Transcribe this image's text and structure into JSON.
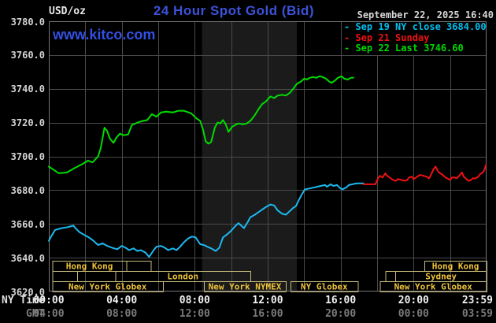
{
  "header": {
    "unit_label": "USD/oz",
    "title": "24 Hour Spot Gold (Bid)",
    "watermark": "www.kitco.com",
    "timestamp": "September 22, 2025 16:40"
  },
  "axis_rows": {
    "ny": "NY Time",
    "gmt": "GMT"
  },
  "colors": {
    "background": "#000000",
    "grid": "#4a4a4a",
    "border": "#777777",
    "band": "#1b1b1b",
    "session_box": "#c6ba7c",
    "session_label": "#efc43a",
    "title_blue": "#3c52d9",
    "green": "#00dc00",
    "cyan": "#1cb8f0",
    "red": "#ee1111"
  },
  "chart_data": {
    "type": "line",
    "title": "24 Hour Spot Gold (Bid)",
    "ylabel": "USD/oz",
    "timestamp": "September 22, 2025 16:40",
    "ylim": [
      3620,
      3780
    ],
    "y_ticks": [
      3780,
      3760,
      3740,
      3720,
      3700,
      3680,
      3660,
      3640,
      3620
    ],
    "grid_hours": [
      2,
      4,
      6,
      8,
      10,
      12,
      14,
      16,
      18,
      20,
      22
    ],
    "x_ticks": [
      {
        "h": 0,
        "ny": "00:00",
        "gmt": "04:00"
      },
      {
        "h": 4,
        "ny": "04:00",
        "gmt": "08:00"
      },
      {
        "h": 8,
        "ny": "08:00",
        "gmt": "12:00"
      },
      {
        "h": 12,
        "ny": "12:00",
        "gmt": "16:00"
      },
      {
        "h": 16,
        "ny": "16:00",
        "gmt": "20:00"
      },
      {
        "h": 20,
        "ny": "20:00",
        "gmt": "00:00"
      },
      {
        "h": 23.98,
        "ny": "23:59",
        "gmt": "03:59"
      }
    ],
    "nymex_band_hours": [
      8.4,
      13.6
    ],
    "legend": [
      {
        "label": "Sep 19 NY close 3684.00",
        "color": "#00bff0"
      },
      {
        "label": "Sep 21 Sunday",
        "color": "#ee1111"
      },
      {
        "label": "Sep 22 Last 3746.60",
        "color": "#00d800"
      }
    ],
    "sessions": [
      {
        "row": 0,
        "start": 0.2,
        "end": 4.25,
        "label": "Hong Kong"
      },
      {
        "row": 0,
        "start": 4.25,
        "end": 5.6,
        "label": ""
      },
      {
        "row": 0,
        "start": 20.6,
        "end": 24,
        "label": "Hong Kong"
      },
      {
        "row": 1,
        "start": 0.2,
        "end": 1.55,
        "label": ""
      },
      {
        "row": 1,
        "start": 1.55,
        "end": 3.65,
        "label": ""
      },
      {
        "row": 1,
        "start": 3.65,
        "end": 11.05,
        "label": "London"
      },
      {
        "row": 1,
        "start": 18.45,
        "end": 19,
        "label": ""
      },
      {
        "row": 1,
        "start": 19,
        "end": 24,
        "label": "Sydney"
      },
      {
        "row": 2,
        "start": 0.2,
        "end": 6.25,
        "label": "New York Globex"
      },
      {
        "row": 2,
        "start": 8.5,
        "end": 13,
        "label": "New York NYMEX"
      },
      {
        "row": 2,
        "start": 13.25,
        "end": 16.95,
        "label": "NY Globex"
      },
      {
        "row": 2,
        "start": 18.15,
        "end": 24,
        "label": "New York Globex"
      }
    ],
    "series": [
      {
        "name": "Sep 19",
        "color": "#1cb8f0",
        "points": [
          [
            0,
            3650
          ],
          [
            0.15,
            3653
          ],
          [
            0.35,
            3656.5
          ],
          [
            0.7,
            3657.5
          ],
          [
            1,
            3658
          ],
          [
            1.35,
            3659
          ],
          [
            1.5,
            3657
          ],
          [
            1.7,
            3655
          ],
          [
            1.95,
            3653.5
          ],
          [
            2.2,
            3652
          ],
          [
            2.45,
            3650
          ],
          [
            2.7,
            3647.5
          ],
          [
            2.95,
            3648.5
          ],
          [
            3.2,
            3647
          ],
          [
            3.45,
            3646
          ],
          [
            3.75,
            3645
          ],
          [
            4,
            3647
          ],
          [
            4.2,
            3646
          ],
          [
            4.4,
            3644.5
          ],
          [
            4.65,
            3645.5
          ],
          [
            4.85,
            3644
          ],
          [
            5.05,
            3644.5
          ],
          [
            5.3,
            3643
          ],
          [
            5.5,
            3640.5
          ],
          [
            5.6,
            3642
          ],
          [
            5.75,
            3644.5
          ],
          [
            5.9,
            3646.5
          ],
          [
            6.15,
            3647
          ],
          [
            6.35,
            3646
          ],
          [
            6.55,
            3644.5
          ],
          [
            6.8,
            3645.5
          ],
          [
            7,
            3644.5
          ],
          [
            7.2,
            3646.5
          ],
          [
            7.4,
            3649
          ],
          [
            7.65,
            3651.5
          ],
          [
            7.85,
            3652.5
          ],
          [
            8.05,
            3652
          ],
          [
            8.3,
            3648
          ],
          [
            8.5,
            3647.5
          ],
          [
            8.7,
            3646.5
          ],
          [
            8.9,
            3645.5
          ],
          [
            9.15,
            3644
          ],
          [
            9.35,
            3646
          ],
          [
            9.55,
            3652
          ],
          [
            9.8,
            3654
          ],
          [
            10,
            3656
          ],
          [
            10.2,
            3658.5
          ],
          [
            10.4,
            3660.5
          ],
          [
            10.55,
            3659
          ],
          [
            10.7,
            3657.5
          ],
          [
            10.9,
            3661
          ],
          [
            11.05,
            3664
          ],
          [
            11.3,
            3665.5
          ],
          [
            11.5,
            3667
          ],
          [
            11.7,
            3668.5
          ],
          [
            11.9,
            3670
          ],
          [
            12.15,
            3671.5
          ],
          [
            12.35,
            3671
          ],
          [
            12.55,
            3668
          ],
          [
            12.8,
            3666
          ],
          [
            13,
            3665.5
          ],
          [
            13.2,
            3667.5
          ],
          [
            13.4,
            3669.5
          ],
          [
            13.55,
            3670.5
          ],
          [
            13.7,
            3674
          ],
          [
            13.9,
            3678
          ],
          [
            14.05,
            3680.5
          ],
          [
            14.3,
            3681
          ],
          [
            14.5,
            3681.5
          ],
          [
            14.7,
            3682
          ],
          [
            14.9,
            3682.5
          ],
          [
            15.15,
            3683
          ],
          [
            15.25,
            3682
          ],
          [
            15.45,
            3683.5
          ],
          [
            15.6,
            3682.5
          ],
          [
            15.8,
            3683
          ],
          [
            16,
            3681
          ],
          [
            16.1,
            3680.5
          ],
          [
            16.3,
            3681.5
          ],
          [
            16.45,
            3683
          ],
          [
            16.65,
            3683.5
          ],
          [
            16.85,
            3684
          ],
          [
            17.05,
            3684
          ],
          [
            17.25,
            3684
          ]
        ]
      },
      {
        "name": "Sep 21",
        "color": "#ee1111",
        "points": [
          [
            17.25,
            3683.5
          ],
          [
            17.5,
            3683.5
          ],
          [
            17.7,
            3683.5
          ],
          [
            17.9,
            3683.5
          ],
          [
            18.05,
            3687
          ],
          [
            18.15,
            3688.5
          ],
          [
            18.3,
            3687.5
          ],
          [
            18.45,
            3690
          ],
          [
            18.55,
            3688.5
          ],
          [
            18.7,
            3687.5
          ],
          [
            18.8,
            3686.5
          ],
          [
            19,
            3685.5
          ],
          [
            19.15,
            3686.5
          ],
          [
            19.35,
            3686
          ],
          [
            19.5,
            3685.5
          ],
          [
            19.65,
            3686
          ],
          [
            19.75,
            3687.5
          ],
          [
            19.9,
            3688
          ],
          [
            20,
            3686.5
          ],
          [
            20.2,
            3688
          ],
          [
            20.35,
            3689
          ],
          [
            20.55,
            3688.5
          ],
          [
            20.7,
            3688
          ],
          [
            20.85,
            3687
          ],
          [
            20.95,
            3689
          ],
          [
            21.1,
            3692.5
          ],
          [
            21.2,
            3694
          ],
          [
            21.35,
            3691
          ],
          [
            21.45,
            3690
          ],
          [
            21.6,
            3689
          ],
          [
            21.75,
            3687.5
          ],
          [
            21.85,
            3687
          ],
          [
            22,
            3686
          ],
          [
            22.1,
            3687.5
          ],
          [
            22.25,
            3687.5
          ],
          [
            22.35,
            3687
          ],
          [
            22.5,
            3688.5
          ],
          [
            22.65,
            3690.5
          ],
          [
            22.75,
            3688
          ],
          [
            22.9,
            3686.5
          ],
          [
            23,
            3685.5
          ],
          [
            23.15,
            3686
          ],
          [
            23.25,
            3687
          ],
          [
            23.4,
            3687
          ],
          [
            23.55,
            3688
          ],
          [
            23.65,
            3689.5
          ],
          [
            23.8,
            3690.5
          ],
          [
            23.88,
            3692
          ],
          [
            23.97,
            3695
          ]
        ]
      },
      {
        "name": "Sep 22",
        "color": "#00dc00",
        "points": [
          [
            0,
            3694
          ],
          [
            0.2,
            3692.5
          ],
          [
            0.55,
            3690
          ],
          [
            1,
            3690.5
          ],
          [
            1.4,
            3693
          ],
          [
            1.85,
            3695.5
          ],
          [
            2.15,
            3697.5
          ],
          [
            2.4,
            3696.5
          ],
          [
            2.7,
            3700
          ],
          [
            2.85,
            3705
          ],
          [
            3.05,
            3717
          ],
          [
            3.2,
            3715
          ],
          [
            3.35,
            3710.5
          ],
          [
            3.55,
            3708
          ],
          [
            3.7,
            3711
          ],
          [
            3.9,
            3713.5
          ],
          [
            4.1,
            3712.5
          ],
          [
            4.35,
            3713
          ],
          [
            4.55,
            3718.5
          ],
          [
            4.85,
            3720
          ],
          [
            5.15,
            3721
          ],
          [
            5.4,
            3721.5
          ],
          [
            5.65,
            3725
          ],
          [
            5.9,
            3723.5
          ],
          [
            6.15,
            3726
          ],
          [
            6.45,
            3726.5
          ],
          [
            6.8,
            3726
          ],
          [
            7.1,
            3727
          ],
          [
            7.4,
            3727
          ],
          [
            7.8,
            3725.5
          ],
          [
            8.1,
            3722.5
          ],
          [
            8.3,
            3721
          ],
          [
            8.45,
            3716
          ],
          [
            8.6,
            3709
          ],
          [
            8.75,
            3707.5
          ],
          [
            8.9,
            3708.5
          ],
          [
            9.1,
            3717
          ],
          [
            9.25,
            3720
          ],
          [
            9.4,
            3719.5
          ],
          [
            9.55,
            3721.5
          ],
          [
            9.7,
            3719
          ],
          [
            9.85,
            3714.5
          ],
          [
            10.05,
            3717.5
          ],
          [
            10.2,
            3718.5
          ],
          [
            10.4,
            3719.5
          ],
          [
            10.65,
            3719
          ],
          [
            10.85,
            3719.5
          ],
          [
            11.05,
            3721
          ],
          [
            11.3,
            3724.5
          ],
          [
            11.5,
            3728
          ],
          [
            11.7,
            3731
          ],
          [
            11.9,
            3732.5
          ],
          [
            12.15,
            3735.5
          ],
          [
            12.35,
            3734.5
          ],
          [
            12.55,
            3736
          ],
          [
            12.8,
            3736.5
          ],
          [
            13,
            3736
          ],
          [
            13.2,
            3737.5
          ],
          [
            13.4,
            3740
          ],
          [
            13.6,
            3743
          ],
          [
            13.85,
            3744.5
          ],
          [
            14,
            3746
          ],
          [
            14.15,
            3745.5
          ],
          [
            14.3,
            3746.5
          ],
          [
            14.5,
            3747
          ],
          [
            14.65,
            3746.5
          ],
          [
            14.85,
            3747.5
          ],
          [
            15,
            3747
          ],
          [
            15.2,
            3746
          ],
          [
            15.35,
            3744.5
          ],
          [
            15.5,
            3743.5
          ],
          [
            15.7,
            3745
          ],
          [
            15.85,
            3746.5
          ],
          [
            16.05,
            3747.5
          ],
          [
            16.2,
            3746
          ],
          [
            16.4,
            3745.5
          ],
          [
            16.55,
            3746.5
          ],
          [
            16.7,
            3746.6
          ]
        ]
      }
    ]
  }
}
